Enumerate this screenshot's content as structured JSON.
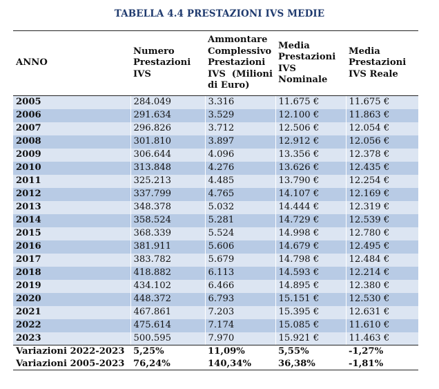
{
  "title": "TABELLA 4.4 PRESTAZIONI IVS MEDIE",
  "columns": [
    "ANNO",
    "Numero Prestazioni IVS",
    "Ammontare Complessivo Prestazioni IVS (Milioni di Euro)",
    "Media Prestazioni IVS Nominale",
    "Media Prestazioni IVS Reale"
  ],
  "rows": [
    [
      "2005",
      "284.049",
      "3.316",
      "11.675 €",
      "11.675 €"
    ],
    [
      "2006",
      "291.634",
      "3.529",
      "12.100 €",
      "11.863 €"
    ],
    [
      "2007",
      "296.826",
      "3.712",
      "12.506 €",
      "12.054 €"
    ],
    [
      "2008",
      "301.810",
      "3.897",
      "12.912 €",
      "12.056 €"
    ],
    [
      "2009",
      "306.644",
      "4.096",
      "13.356 €",
      "12.378 €"
    ],
    [
      "2010",
      "313.848",
      "4.276",
      "13.626 €",
      "12.435 €"
    ],
    [
      "2011",
      "325.213",
      "4.485",
      "13.790 €",
      "12.254 €"
    ],
    [
      "2012",
      "337.799",
      "4.765",
      "14.107 €",
      "12.169 €"
    ],
    [
      "2013",
      "348.378",
      "5.032",
      "14.444 €",
      "12.319 €"
    ],
    [
      "2014",
      "358.524",
      "5.281",
      "14.729 €",
      "12.539 €"
    ],
    [
      "2015",
      "368.339",
      "5.524",
      "14.998 €",
      "12.780 €"
    ],
    [
      "2016",
      "381.911",
      "5.606",
      "14.679 €",
      "12.495 €"
    ],
    [
      "2017",
      "383.782",
      "5.679",
      "14.798 €",
      "12.484 €"
    ],
    [
      "2018",
      "418.882",
      "6.113",
      "14.593 €",
      "12.214 €"
    ],
    [
      "2019",
      "434.102",
      "6.466",
      "14.895 €",
      "12.380 €"
    ],
    [
      "2020",
      "448.372",
      "6.793",
      "15.151 €",
      "12.530 €"
    ],
    [
      "2021",
      "467.861",
      "7.203",
      "15.395 €",
      "12.631 €"
    ],
    [
      "2022",
      "475.614",
      "7.174",
      "15.085 €",
      "11.610 €"
    ],
    [
      "2023",
      "500.595",
      "7.970",
      "15.921 €",
      "11.463 €"
    ]
  ],
  "variations": [
    [
      "Variazioni 2022-2023",
      "5,25%",
      "11,09%",
      "5,55%",
      "-1,27%"
    ],
    [
      "Variazioni 2005-2023",
      "76,24%",
      "140,34%",
      "36,38%",
      "-1,81%"
    ]
  ],
  "colors": {
    "title": "#1f3a6e",
    "row_light": "#dce5f2",
    "row_dark": "#b8cbe5"
  }
}
